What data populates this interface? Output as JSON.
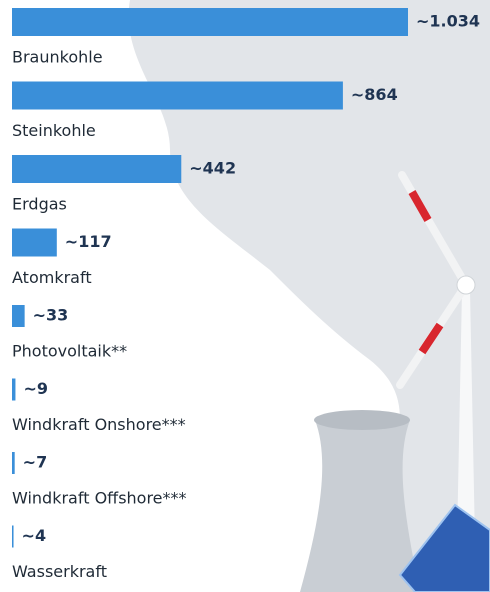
{
  "chart_data": {
    "type": "bar",
    "categories": [
      "Braunkohle",
      "Steinkohle",
      "Erdgas",
      "Atomkraft",
      "Photovoltaik**",
      "Windkraft Onshore***",
      "Windkraft Offshore***",
      "Wasserkraft"
    ],
    "values": [
      1034,
      864,
      442,
      117,
      33,
      9,
      7,
      4
    ],
    "value_labels": [
      "~1.034",
      "~864",
      "~442",
      "~117",
      "~33",
      "~9",
      "~7",
      "~4"
    ],
    "color": "#3a8fd9"
  }
}
